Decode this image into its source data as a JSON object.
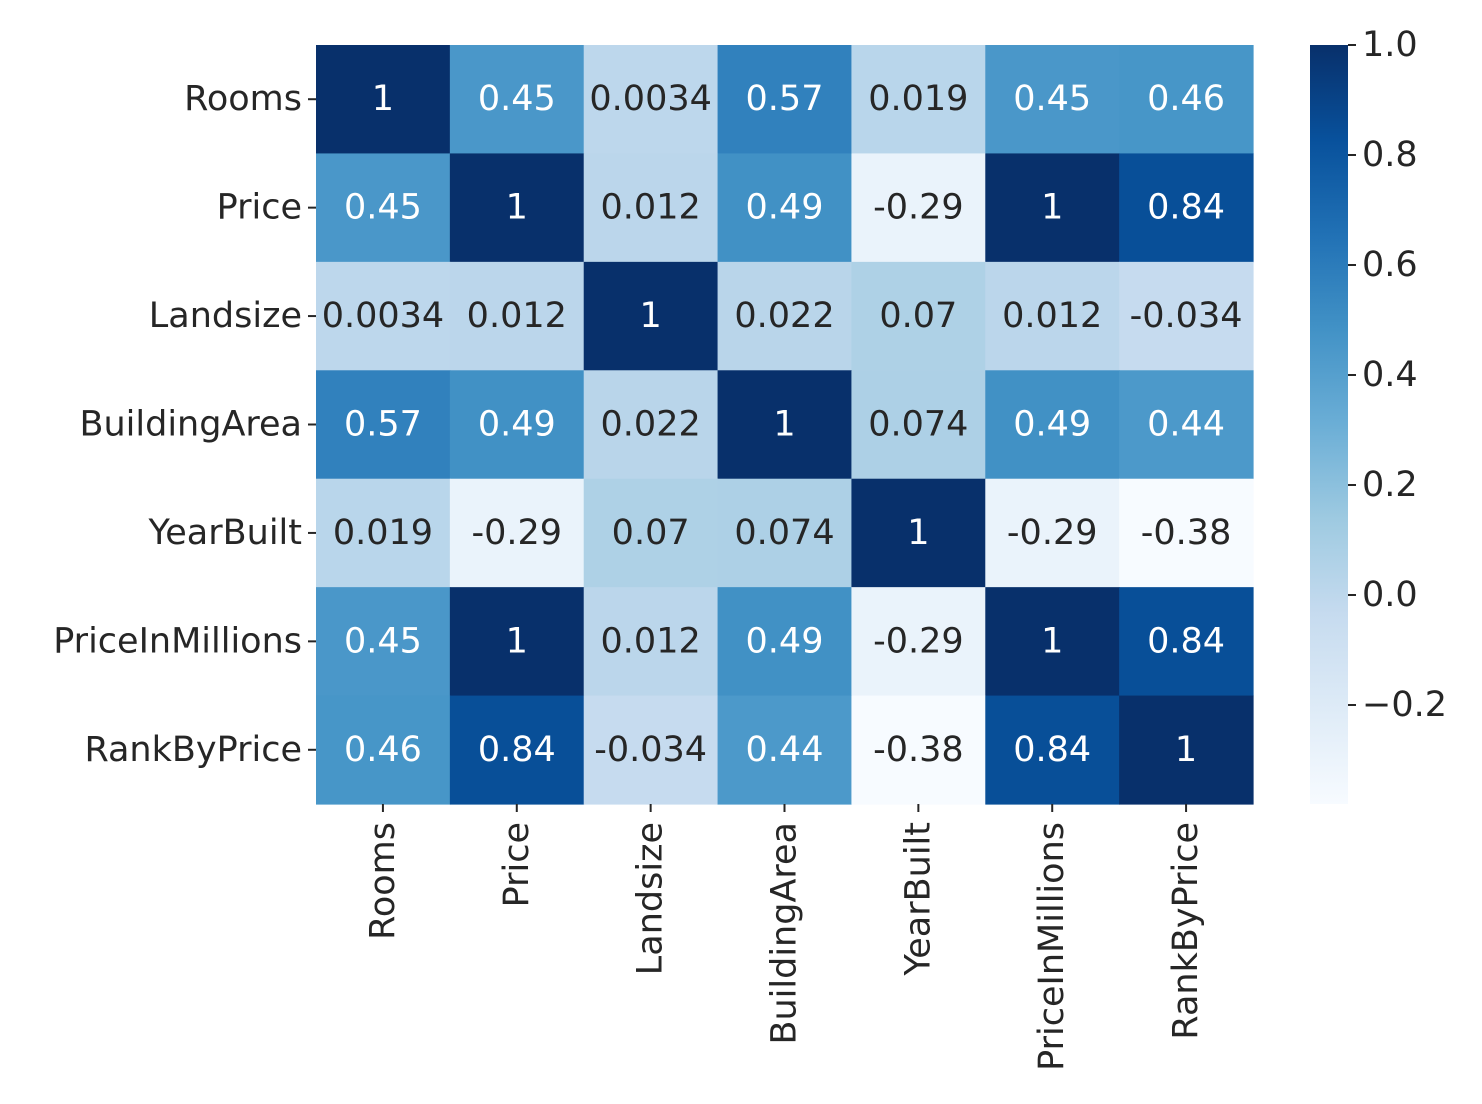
{
  "chart_data": {
    "type": "heatmap",
    "title": "",
    "xlabel": "",
    "ylabel": "",
    "x_categories": [
      "Rooms",
      "Price",
      "Landsize",
      "BuildingArea",
      "YearBuilt",
      "PriceInMillions",
      "RankByPrice"
    ],
    "y_categories": [
      "Rooms",
      "Price",
      "Landsize",
      "BuildingArea",
      "YearBuilt",
      "PriceInMillions",
      "RankByPrice"
    ],
    "values": [
      [
        1,
        0.45,
        0.0034,
        0.57,
        0.019,
        0.45,
        0.46
      ],
      [
        0.45,
        1,
        0.012,
        0.49,
        -0.29,
        1,
        0.84
      ],
      [
        0.0034,
        0.012,
        1,
        0.022,
        0.07,
        0.012,
        -0.034
      ],
      [
        0.57,
        0.49,
        0.022,
        1,
        0.074,
        0.49,
        0.44
      ],
      [
        0.019,
        -0.29,
        0.07,
        0.074,
        1,
        -0.29,
        -0.38
      ],
      [
        0.45,
        1,
        0.012,
        0.49,
        -0.29,
        1,
        0.84
      ],
      [
        0.46,
        0.84,
        -0.034,
        0.44,
        -0.38,
        0.84,
        1
      ]
    ],
    "cell_labels": [
      [
        "1",
        "0.45",
        "0.0034",
        "0.57",
        "0.019",
        "0.45",
        "0.46"
      ],
      [
        "0.45",
        "1",
        "0.012",
        "0.49",
        "-0.29",
        "1",
        "0.84"
      ],
      [
        "0.0034",
        "0.012",
        "1",
        "0.022",
        "0.07",
        "0.012",
        "-0.034"
      ],
      [
        "0.57",
        "0.49",
        "0.022",
        "1",
        "0.074",
        "0.49",
        "0.44"
      ],
      [
        "0.019",
        "-0.29",
        "0.07",
        "0.074",
        "1",
        "-0.29",
        "-0.38"
      ],
      [
        "0.45",
        "1",
        "0.012",
        "0.49",
        "-0.29",
        "1",
        "0.84"
      ],
      [
        "0.46",
        "0.84",
        "-0.034",
        "0.44",
        "-0.38",
        "0.84",
        "1"
      ]
    ],
    "colormap": "Blues",
    "colorbar": {
      "vmin": -0.38,
      "vmax": 1.0,
      "ticks": [
        1.0,
        0.8,
        0.6,
        0.4,
        0.2,
        0.0,
        -0.2
      ],
      "tick_labels": [
        "1.0",
        "0.8",
        "0.6",
        "0.4",
        "0.2",
        "0.0",
        "−0.2"
      ]
    },
    "colors": {
      "stops": [
        "#f7fbff",
        "#deebf7",
        "#c6dbef",
        "#9ecae1",
        "#6baed6",
        "#4292c6",
        "#2171b5",
        "#08519c",
        "#08306b"
      ],
      "dark_text": "#262626",
      "light_text": "#ffffff"
    }
  }
}
